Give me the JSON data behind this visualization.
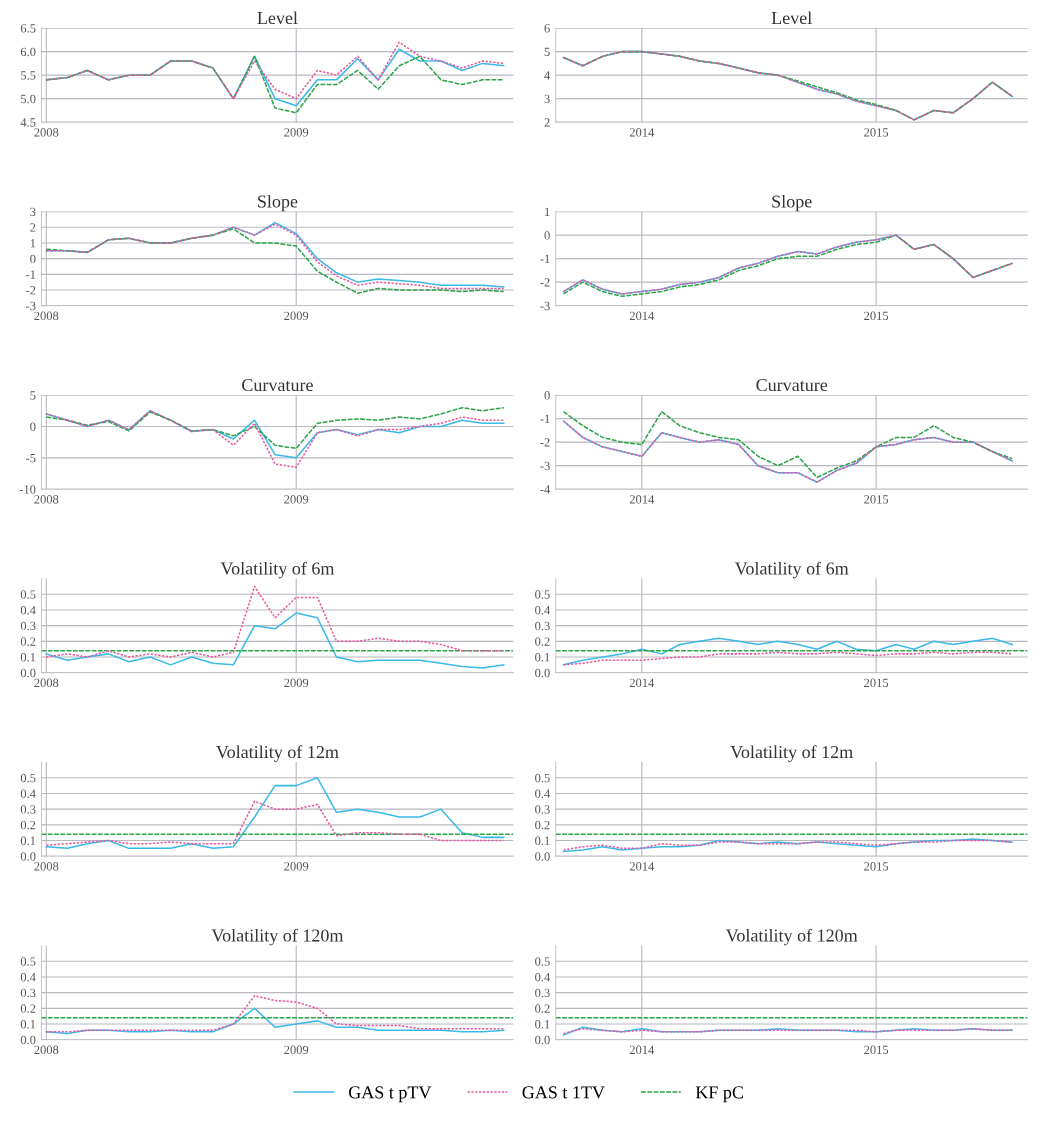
{
  "chart_data": [
    {
      "type": "line",
      "title": "Level",
      "grid": true,
      "legend": "bottom",
      "xlim": [
        "2007-12-25",
        "2009-11-15"
      ],
      "xticks": [
        {
          "value": "2008",
          "label": "2008"
        },
        {
          "value": "2009",
          "label": "2009"
        }
      ],
      "ylim": [
        4.5,
        6.5
      ],
      "yticks": [
        4.5,
        {
          "value": 5,
          "label": "5.0"
        },
        5.5,
        {
          "value": 6,
          "label": "6.0"
        },
        6.5
      ],
      "x": [
        "2008-01",
        "2008-02",
        "2008-03",
        "2008-04",
        "2008-05",
        "2008-06",
        "2008-07",
        "2008-08",
        "2008-09",
        "2008-10",
        "2008-11",
        "2008-12",
        "2009-01",
        "2009-02",
        "2009-03",
        "2009-04",
        "2009-05",
        "2009-06",
        "2009-07",
        "2009-08",
        "2009-09",
        "2009-10",
        "2009-11"
      ],
      "series": [
        {
          "name": "GAS t pTV",
          "color": "#3bb9e8",
          "line_style": "solid",
          "values": [
            5.4,
            5.45,
            5.6,
            5.4,
            5.5,
            5.5,
            5.8,
            5.8,
            5.65,
            5.0,
            5.9,
            5.0,
            4.85,
            5.4,
            5.4,
            5.85,
            5.4,
            6.05,
            5.8,
            5.8,
            5.6,
            5.75,
            5.7
          ]
        },
        {
          "name": "GAS t 1TV",
          "color": "#e8589f",
          "line_style": "dotted",
          "values": [
            5.4,
            5.45,
            5.6,
            5.4,
            5.5,
            5.5,
            5.8,
            5.8,
            5.65,
            5.0,
            5.8,
            5.2,
            5.0,
            5.6,
            5.5,
            5.9,
            5.4,
            6.2,
            5.9,
            5.8,
            5.65,
            5.8,
            5.75
          ]
        },
        {
          "name": "KF pC",
          "color": "#2da44a",
          "line_style": "dashed",
          "values": [
            5.4,
            5.45,
            5.6,
            5.4,
            5.5,
            5.5,
            5.8,
            5.8,
            5.65,
            5.0,
            5.9,
            4.8,
            4.7,
            5.3,
            5.3,
            5.6,
            5.2,
            5.7,
            5.9,
            5.4,
            5.3,
            5.4,
            5.4
          ]
        }
      ]
    },
    {
      "type": "line",
      "title": "Level",
      "grid": true,
      "xlim": [
        "2013-08-20",
        "2015-08-25"
      ],
      "xticks": [
        {
          "value": "2014",
          "label": "2014"
        },
        {
          "value": "2015",
          "label": "2015"
        }
      ],
      "ylim": [
        2,
        6
      ],
      "yticks": [
        2,
        3,
        4,
        5,
        6
      ],
      "x": [
        "2013-09",
        "2013-10",
        "2013-11",
        "2013-12",
        "2014-01",
        "2014-02",
        "2014-03",
        "2014-04",
        "2014-05",
        "2014-06",
        "2014-07",
        "2014-08",
        "2014-09",
        "2014-10",
        "2014-11",
        "2014-12",
        "2015-01",
        "2015-02",
        "2015-03",
        "2015-04",
        "2015-05",
        "2015-06",
        "2015-07",
        "2015-08"
      ],
      "series": [
        {
          "color": "#3bb9e8",
          "line_style": "solid",
          "values": [
            4.75,
            4.4,
            4.8,
            5.0,
            5.0,
            4.9,
            4.8,
            4.6,
            4.5,
            4.3,
            4.1,
            4.0,
            3.7,
            3.4,
            3.2,
            2.9,
            2.7,
            2.5,
            2.1,
            2.5,
            2.4,
            3.0,
            3.7,
            3.1
          ]
        },
        {
          "color": "#e8589f",
          "line_style": "dotted",
          "values": [
            4.75,
            4.4,
            4.8,
            5.0,
            5.0,
            4.9,
            4.8,
            4.6,
            4.5,
            4.3,
            4.1,
            4.0,
            3.7,
            3.4,
            3.2,
            2.9,
            2.7,
            2.5,
            2.1,
            2.5,
            2.4,
            3.0,
            3.7,
            3.1
          ]
        },
        {
          "color": "#2da44a",
          "line_style": "dashed",
          "values": [
            4.75,
            4.4,
            4.8,
            5.0,
            5.0,
            4.9,
            4.8,
            4.6,
            4.5,
            4.3,
            4.1,
            4.0,
            3.75,
            3.5,
            3.25,
            2.95,
            2.75,
            2.5,
            2.1,
            2.5,
            2.4,
            3.0,
            3.7,
            3.1
          ]
        }
      ]
    },
    {
      "type": "line",
      "title": "Slope",
      "grid": true,
      "xlim": [
        "2007-12-25",
        "2009-11-15"
      ],
      "xticks": [
        {
          "value": "2008",
          "label": "2008"
        },
        {
          "value": "2009",
          "label": "2009"
        }
      ],
      "ylim": [
        -3,
        3
      ],
      "yticks": [
        -3,
        -2,
        -1,
        0,
        1,
        2,
        3
      ],
      "x": [
        "2008-01",
        "2008-02",
        "2008-03",
        "2008-04",
        "2008-05",
        "2008-06",
        "2008-07",
        "2008-08",
        "2008-09",
        "2008-10",
        "2008-11",
        "2008-12",
        "2009-01",
        "2009-02",
        "2009-03",
        "2009-04",
        "2009-05",
        "2009-06",
        "2009-07",
        "2009-08",
        "2009-09",
        "2009-10",
        "2009-11"
      ],
      "series": [
        {
          "color": "#3bb9e8",
          "line_style": "solid",
          "values": [
            0.5,
            0.5,
            0.4,
            1.2,
            1.3,
            1.0,
            1.0,
            1.3,
            1.5,
            2.0,
            1.5,
            2.3,
            1.6,
            0,
            -0.9,
            -1.5,
            -1.3,
            -1.4,
            -1.5,
            -1.7,
            -1.7,
            -1.7,
            -1.8
          ]
        },
        {
          "color": "#e8589f",
          "line_style": "dotted",
          "values": [
            0.5,
            0.5,
            0.4,
            1.2,
            1.3,
            1.0,
            1.0,
            1.3,
            1.5,
            2.0,
            1.5,
            2.2,
            1.5,
            -0.2,
            -1.1,
            -1.7,
            -1.5,
            -1.6,
            -1.7,
            -1.9,
            -1.9,
            -1.9,
            -1.9
          ]
        },
        {
          "color": "#2da44a",
          "line_style": "dashed",
          "values": [
            0.6,
            0.5,
            0.4,
            1.2,
            1.3,
            1.0,
            1.0,
            1.3,
            1.5,
            1.9,
            1.0,
            1.0,
            0.8,
            -0.8,
            -1.5,
            -2.2,
            -1.9,
            -2.0,
            -2.0,
            -2.0,
            -2.1,
            -2.0,
            -2.1
          ]
        }
      ]
    },
    {
      "type": "line",
      "title": "Slope",
      "grid": true,
      "xlim": [
        "2013-08-20",
        "2015-08-25"
      ],
      "xticks": [
        {
          "value": "2014",
          "label": "2014"
        },
        {
          "value": "2015",
          "label": "2015"
        }
      ],
      "ylim": [
        -3,
        1
      ],
      "yticks": [
        -3,
        -2,
        -1,
        0,
        1
      ],
      "x": [
        "2013-09",
        "2013-10",
        "2013-11",
        "2013-12",
        "2014-01",
        "2014-02",
        "2014-03",
        "2014-04",
        "2014-05",
        "2014-06",
        "2014-07",
        "2014-08",
        "2014-09",
        "2014-10",
        "2014-11",
        "2014-12",
        "2015-01",
        "2015-02",
        "2015-03",
        "2015-04",
        "2015-05",
        "2015-06",
        "2015-07",
        "2015-08"
      ],
      "series": [
        {
          "color": "#3bb9e8",
          "line_style": "solid",
          "values": [
            -2.4,
            -1.9,
            -2.3,
            -2.5,
            -2.4,
            -2.3,
            -2.1,
            -2.0,
            -1.8,
            -1.4,
            -1.2,
            -0.9,
            -0.7,
            -0.8,
            -0.5,
            -0.3,
            -0.2,
            0.0,
            -0.6,
            -0.4,
            -1.0,
            -1.8,
            -1.5,
            -1.2
          ]
        },
        {
          "color": "#e8589f",
          "line_style": "dotted",
          "values": [
            -2.4,
            -1.9,
            -2.3,
            -2.5,
            -2.4,
            -2.3,
            -2.1,
            -2.0,
            -1.8,
            -1.4,
            -1.2,
            -0.9,
            -0.7,
            -0.8,
            -0.5,
            -0.3,
            -0.2,
            0.0,
            -0.6,
            -0.4,
            -1.0,
            -1.8,
            -1.5,
            -1.2
          ]
        },
        {
          "color": "#2da44a",
          "line_style": "dashed",
          "values": [
            -2.5,
            -2.0,
            -2.4,
            -2.6,
            -2.5,
            -2.4,
            -2.2,
            -2.1,
            -1.9,
            -1.5,
            -1.3,
            -1.0,
            -0.9,
            -0.9,
            -0.6,
            -0.4,
            -0.3,
            0.0,
            -0.6,
            -0.4,
            -1.0,
            -1.8,
            -1.5,
            -1.2
          ]
        }
      ]
    },
    {
      "type": "line",
      "title": "Curvature",
      "grid": true,
      "xlim": [
        "2007-12-25",
        "2009-11-15"
      ],
      "xticks": [
        {
          "value": "2008",
          "label": "2008"
        },
        {
          "value": "2009",
          "label": "2009"
        }
      ],
      "ylim": [
        -10,
        5
      ],
      "yticks": [
        -10,
        -5,
        0,
        5
      ],
      "x": [
        "2008-01",
        "2008-02",
        "2008-03",
        "2008-04",
        "2008-05",
        "2008-06",
        "2008-07",
        "2008-08",
        "2008-09",
        "2008-10",
        "2008-11",
        "2008-12",
        "2009-01",
        "2009-02",
        "2009-03",
        "2009-04",
        "2009-05",
        "2009-06",
        "2009-07",
        "2009-08",
        "2009-09",
        "2009-10",
        "2009-11"
      ],
      "series": [
        {
          "color": "#3bb9e8",
          "line_style": "solid",
          "values": [
            2,
            1,
            0,
            1,
            -0.5,
            2.5,
            1,
            -0.8,
            -0.5,
            -2,
            1,
            -4.5,
            -5,
            -1,
            -0.5,
            -1.3,
            -0.5,
            -1,
            0,
            0,
            1,
            0.5,
            0.5
          ]
        },
        {
          "color": "#e8589f",
          "line_style": "dotted",
          "values": [
            2,
            1,
            0,
            1,
            -0.5,
            2.5,
            1,
            -0.8,
            -0.5,
            -3,
            0.5,
            -6,
            -6.5,
            -1,
            -0.5,
            -1.5,
            -0.5,
            -0.5,
            0,
            0.5,
            1.5,
            1.0,
            1.0
          ]
        },
        {
          "color": "#2da44a",
          "line_style": "dashed",
          "values": [
            1.5,
            1.0,
            0.2,
            0.8,
            -0.7,
            2.3,
            1,
            -0.7,
            -0.5,
            -1.5,
            0,
            -3,
            -3.5,
            0.5,
            1,
            1.2,
            1,
            1.5,
            1.2,
            2,
            3,
            2.5,
            3
          ]
        }
      ]
    },
    {
      "type": "line",
      "title": "Curvature",
      "grid": true,
      "xlim": [
        "2013-08-20",
        "2015-08-25"
      ],
      "xticks": [
        {
          "value": "2014",
          "label": "2014"
        },
        {
          "value": "2015",
          "label": "2015"
        }
      ],
      "ylim": [
        -4,
        0
      ],
      "yticks": [
        -4,
        -3,
        -2,
        -1,
        0
      ],
      "x": [
        "2013-09",
        "2013-10",
        "2013-11",
        "2013-12",
        "2014-01",
        "2014-02",
        "2014-03",
        "2014-04",
        "2014-05",
        "2014-06",
        "2014-07",
        "2014-08",
        "2014-09",
        "2014-10",
        "2014-11",
        "2014-12",
        "2015-01",
        "2015-02",
        "2015-03",
        "2015-04",
        "2015-05",
        "2015-06",
        "2015-07",
        "2015-08"
      ],
      "series": [
        {
          "color": "#3bb9e8",
          "line_style": "solid",
          "values": [
            -1.1,
            -1.8,
            -2.2,
            -2.4,
            -2.6,
            -1.6,
            -1.8,
            -2.0,
            -1.9,
            -2.1,
            -3.0,
            -3.3,
            -3.3,
            -3.7,
            -3.2,
            -2.9,
            -2.2,
            -2.1,
            -1.9,
            -1.8,
            -2.0,
            -2.0,
            -2.4,
            -2.8
          ]
        },
        {
          "color": "#e8589f",
          "line_style": "dotted",
          "values": [
            -1.1,
            -1.8,
            -2.2,
            -2.4,
            -2.6,
            -1.6,
            -1.8,
            -2.0,
            -1.9,
            -2.1,
            -3.0,
            -3.3,
            -3.3,
            -3.7,
            -3.2,
            -2.9,
            -2.2,
            -2.1,
            -1.9,
            -1.8,
            -2.0,
            -2.0,
            -2.4,
            -2.8
          ]
        },
        {
          "color": "#2da44a",
          "line_style": "dashed",
          "values": [
            -0.7,
            -1.3,
            -1.8,
            -2.0,
            -2.1,
            -0.7,
            -1.3,
            -1.6,
            -1.8,
            -1.9,
            -2.6,
            -3.0,
            -2.6,
            -3.5,
            -3.1,
            -2.8,
            -2.2,
            -1.8,
            -1.8,
            -1.3,
            -1.8,
            -2.0,
            -2.4,
            -2.7
          ]
        }
      ]
    },
    {
      "type": "line",
      "title": "Volatility of 6m",
      "grid": true,
      "xlim": [
        "2007-12-25",
        "2009-11-15"
      ],
      "xticks": [
        {
          "value": "2008",
          "label": "2008"
        },
        {
          "value": "2009",
          "label": "2009"
        }
      ],
      "ylim": [
        0,
        0.6
      ],
      "yticks": [
        {
          "value": 0,
          "label": "0.0"
        },
        0.1,
        0.2,
        0.3,
        0.4,
        0.5
      ],
      "x": [
        "2008-01",
        "2008-02",
        "2008-03",
        "2008-04",
        "2008-05",
        "2008-06",
        "2008-07",
        "2008-08",
        "2008-09",
        "2008-10",
        "2008-11",
        "2008-12",
        "2009-01",
        "2009-02",
        "2009-03",
        "2009-04",
        "2009-05",
        "2009-06",
        "2009-07",
        "2009-08",
        "2009-09",
        "2009-10",
        "2009-11"
      ],
      "series": [
        {
          "color": "#3bb9e8",
          "line_style": "solid",
          "values": [
            0.12,
            0.08,
            0.1,
            0.12,
            0.07,
            0.1,
            0.05,
            0.1,
            0.06,
            0.05,
            0.3,
            0.28,
            0.38,
            0.35,
            0.1,
            0.07,
            0.08,
            0.08,
            0.08,
            0.06,
            0.04,
            0.03,
            0.05
          ]
        },
        {
          "color": "#e8589f",
          "line_style": "dotted",
          "values": [
            0.1,
            0.12,
            0.1,
            0.14,
            0.1,
            0.12,
            0.1,
            0.13,
            0.1,
            0.13,
            0.55,
            0.35,
            0.48,
            0.48,
            0.2,
            0.2,
            0.22,
            0.2,
            0.2,
            0.18,
            0.14,
            0.14,
            0.14
          ]
        },
        {
          "color": "#2da44a",
          "line_style": "dashed",
          "x": [
            "2007-12-25",
            "2009-11-15"
          ],
          "values": [
            0.14,
            0.14
          ]
        }
      ]
    },
    {
      "type": "line",
      "title": "Volatility of 6m",
      "grid": true,
      "xlim": [
        "2013-08-20",
        "2015-08-25"
      ],
      "xticks": [
        {
          "value": "2014",
          "label": "2014"
        },
        {
          "value": "2015",
          "label": "2015"
        }
      ],
      "ylim": [
        0,
        0.6
      ],
      "yticks": [
        {
          "value": 0,
          "label": "0.0"
        },
        0.1,
        0.2,
        0.3,
        0.4,
        0.5
      ],
      "x": [
        "2013-09",
        "2013-10",
        "2013-11",
        "2013-12",
        "2014-01",
        "2014-02",
        "2014-03",
        "2014-04",
        "2014-05",
        "2014-06",
        "2014-07",
        "2014-08",
        "2014-09",
        "2014-10",
        "2014-11",
        "2014-12",
        "2015-01",
        "2015-02",
        "2015-03",
        "2015-04",
        "2015-05",
        "2015-06",
        "2015-07",
        "2015-08"
      ],
      "series": [
        {
          "color": "#3bb9e8",
          "line_style": "solid",
          "values": [
            0.05,
            0.08,
            0.1,
            0.12,
            0.15,
            0.12,
            0.18,
            0.2,
            0.22,
            0.2,
            0.18,
            0.2,
            0.18,
            0.15,
            0.2,
            0.15,
            0.14,
            0.18,
            0.15,
            0.2,
            0.18,
            0.2,
            0.22,
            0.18
          ]
        },
        {
          "color": "#e8589f",
          "line_style": "dotted",
          "values": [
            0.05,
            0.06,
            0.08,
            0.08,
            0.08,
            0.09,
            0.1,
            0.1,
            0.12,
            0.12,
            0.12,
            0.13,
            0.12,
            0.12,
            0.13,
            0.12,
            0.11,
            0.12,
            0.12,
            0.13,
            0.12,
            0.13,
            0.13,
            0.12
          ]
        },
        {
          "color": "#2da44a",
          "line_style": "dashed",
          "x": [
            "2013-08-20",
            "2015-08-25"
          ],
          "values": [
            0.14,
            0.14
          ]
        }
      ]
    },
    {
      "type": "line",
      "title": "Volatility of 12m",
      "grid": true,
      "xlim": [
        "2007-12-25",
        "2009-11-15"
      ],
      "xticks": [
        {
          "value": "2008",
          "label": "2008"
        },
        {
          "value": "2009",
          "label": "2009"
        }
      ],
      "ylim": [
        0,
        0.6
      ],
      "yticks": [
        {
          "value": 0,
          "label": "0.0"
        },
        0.1,
        0.2,
        0.3,
        0.4,
        0.5
      ],
      "x": [
        "2008-01",
        "2008-02",
        "2008-03",
        "2008-04",
        "2008-05",
        "2008-06",
        "2008-07",
        "2008-08",
        "2008-09",
        "2008-10",
        "2008-11",
        "2008-12",
        "2009-01",
        "2009-02",
        "2009-03",
        "2009-04",
        "2009-05",
        "2009-06",
        "2009-07",
        "2009-08",
        "2009-09",
        "2009-10",
        "2009-11"
      ],
      "series": [
        {
          "color": "#3bb9e8",
          "line_style": "solid",
          "values": [
            0.06,
            0.05,
            0.08,
            0.1,
            0.05,
            0.05,
            0.05,
            0.08,
            0.05,
            0.06,
            0.25,
            0.45,
            0.45,
            0.5,
            0.28,
            0.3,
            0.28,
            0.25,
            0.25,
            0.3,
            0.15,
            0.12,
            0.12
          ]
        },
        {
          "color": "#e8589f",
          "line_style": "dotted",
          "values": [
            0.07,
            0.08,
            0.09,
            0.1,
            0.08,
            0.08,
            0.09,
            0.08,
            0.08,
            0.08,
            0.35,
            0.3,
            0.3,
            0.33,
            0.13,
            0.15,
            0.15,
            0.14,
            0.14,
            0.1,
            0.1,
            0.1,
            0.1
          ]
        },
        {
          "color": "#2da44a",
          "line_style": "dashed",
          "x": [
            "2007-12-25",
            "2009-11-15"
          ],
          "values": [
            0.14,
            0.14
          ]
        }
      ]
    },
    {
      "type": "line",
      "title": "Volatility of 12m",
      "grid": true,
      "xlim": [
        "2013-08-20",
        "2015-08-25"
      ],
      "xticks": [
        {
          "value": "2014",
          "label": "2014"
        },
        {
          "value": "2015",
          "label": "2015"
        }
      ],
      "ylim": [
        0,
        0.6
      ],
      "yticks": [
        {
          "value": 0,
          "label": "0.0"
        },
        0.1,
        0.2,
        0.3,
        0.4,
        0.5
      ],
      "x": [
        "2013-09",
        "2013-10",
        "2013-11",
        "2013-12",
        "2014-01",
        "2014-02",
        "2014-03",
        "2014-04",
        "2014-05",
        "2014-06",
        "2014-07",
        "2014-08",
        "2014-09",
        "2014-10",
        "2014-11",
        "2014-12",
        "2015-01",
        "2015-02",
        "2015-03",
        "2015-04",
        "2015-05",
        "2015-06",
        "2015-07",
        "2015-08"
      ],
      "series": [
        {
          "color": "#3bb9e8",
          "line_style": "solid",
          "values": [
            0.03,
            0.04,
            0.06,
            0.04,
            0.05,
            0.06,
            0.06,
            0.07,
            0.1,
            0.09,
            0.08,
            0.09,
            0.08,
            0.09,
            0.08,
            0.07,
            0.06,
            0.08,
            0.09,
            0.1,
            0.1,
            0.11,
            0.1,
            0.09
          ]
        },
        {
          "color": "#e8589f",
          "line_style": "dotted",
          "values": [
            0.04,
            0.06,
            0.07,
            0.05,
            0.05,
            0.08,
            0.07,
            0.07,
            0.09,
            0.09,
            0.08,
            0.08,
            0.08,
            0.09,
            0.09,
            0.08,
            0.07,
            0.08,
            0.09,
            0.09,
            0.1,
            0.1,
            0.1,
            0.09
          ]
        },
        {
          "color": "#2da44a",
          "line_style": "dashed",
          "x": [
            "2013-08-20",
            "2015-08-25"
          ],
          "values": [
            0.14,
            0.14
          ]
        }
      ]
    },
    {
      "type": "line",
      "title": "Volatility of 120m",
      "grid": true,
      "xlim": [
        "2007-12-25",
        "2009-11-15"
      ],
      "xticks": [
        {
          "value": "2008",
          "label": "2008"
        },
        {
          "value": "2009",
          "label": "2009"
        }
      ],
      "ylim": [
        0,
        0.6
      ],
      "yticks": [
        {
          "value": 0,
          "label": "0.0"
        },
        0.1,
        0.2,
        0.3,
        0.4,
        0.5
      ],
      "x": [
        "2008-01",
        "2008-02",
        "2008-03",
        "2008-04",
        "2008-05",
        "2008-06",
        "2008-07",
        "2008-08",
        "2008-09",
        "2008-10",
        "2008-11",
        "2008-12",
        "2009-01",
        "2009-02",
        "2009-03",
        "2009-04",
        "2009-05",
        "2009-06",
        "2009-07",
        "2009-08",
        "2009-09",
        "2009-10",
        "2009-11"
      ],
      "series": [
        {
          "color": "#3bb9e8",
          "line_style": "solid",
          "values": [
            0.05,
            0.04,
            0.06,
            0.06,
            0.05,
            0.05,
            0.06,
            0.05,
            0.05,
            0.1,
            0.2,
            0.08,
            0.1,
            0.12,
            0.08,
            0.08,
            0.06,
            0.06,
            0.06,
            0.06,
            0.05,
            0.05,
            0.06
          ]
        },
        {
          "color": "#e8589f",
          "line_style": "dotted",
          "values": [
            0.05,
            0.05,
            0.06,
            0.06,
            0.06,
            0.06,
            0.06,
            0.06,
            0.06,
            0.1,
            0.28,
            0.25,
            0.24,
            0.2,
            0.1,
            0.09,
            0.09,
            0.09,
            0.07,
            0.07,
            0.07,
            0.07,
            0.07
          ]
        },
        {
          "color": "#2da44a",
          "line_style": "dashed",
          "x": [
            "2007-12-25",
            "2009-11-15"
          ],
          "values": [
            0.14,
            0.14
          ]
        }
      ]
    },
    {
      "type": "line",
      "title": "Volatility of 120m",
      "grid": true,
      "xlim": [
        "2013-08-20",
        "2015-08-25"
      ],
      "xticks": [
        {
          "value": "2014",
          "label": "2014"
        },
        {
          "value": "2015",
          "label": "2015"
        }
      ],
      "ylim": [
        0,
        0.6
      ],
      "yticks": [
        {
          "value": 0,
          "label": "0.0"
        },
        0.1,
        0.2,
        0.3,
        0.4,
        0.5
      ],
      "x": [
        "2013-09",
        "2013-10",
        "2013-11",
        "2013-12",
        "2014-01",
        "2014-02",
        "2014-03",
        "2014-04",
        "2014-05",
        "2014-06",
        "2014-07",
        "2014-08",
        "2014-09",
        "2014-10",
        "2014-11",
        "2014-12",
        "2015-01",
        "2015-02",
        "2015-03",
        "2015-04",
        "2015-05",
        "2015-06",
        "2015-07",
        "2015-08"
      ],
      "series": [
        {
          "color": "#3bb9e8",
          "line_style": "solid",
          "values": [
            0.03,
            0.08,
            0.06,
            0.05,
            0.07,
            0.05,
            0.05,
            0.05,
            0.06,
            0.06,
            0.06,
            0.07,
            0.06,
            0.06,
            0.06,
            0.05,
            0.05,
            0.06,
            0.07,
            0.06,
            0.06,
            0.07,
            0.06,
            0.06
          ]
        },
        {
          "color": "#e8589f",
          "line_style": "dotted",
          "values": [
            0.04,
            0.07,
            0.06,
            0.05,
            0.06,
            0.05,
            0.05,
            0.05,
            0.06,
            0.06,
            0.06,
            0.06,
            0.06,
            0.06,
            0.06,
            0.06,
            0.05,
            0.06,
            0.06,
            0.06,
            0.06,
            0.07,
            0.06,
            0.06
          ]
        },
        {
          "color": "#2da44a",
          "line_style": "dashed",
          "x": [
            "2013-08-20",
            "2015-08-25"
          ],
          "values": [
            0.14,
            0.14
          ]
        }
      ]
    }
  ]
}
